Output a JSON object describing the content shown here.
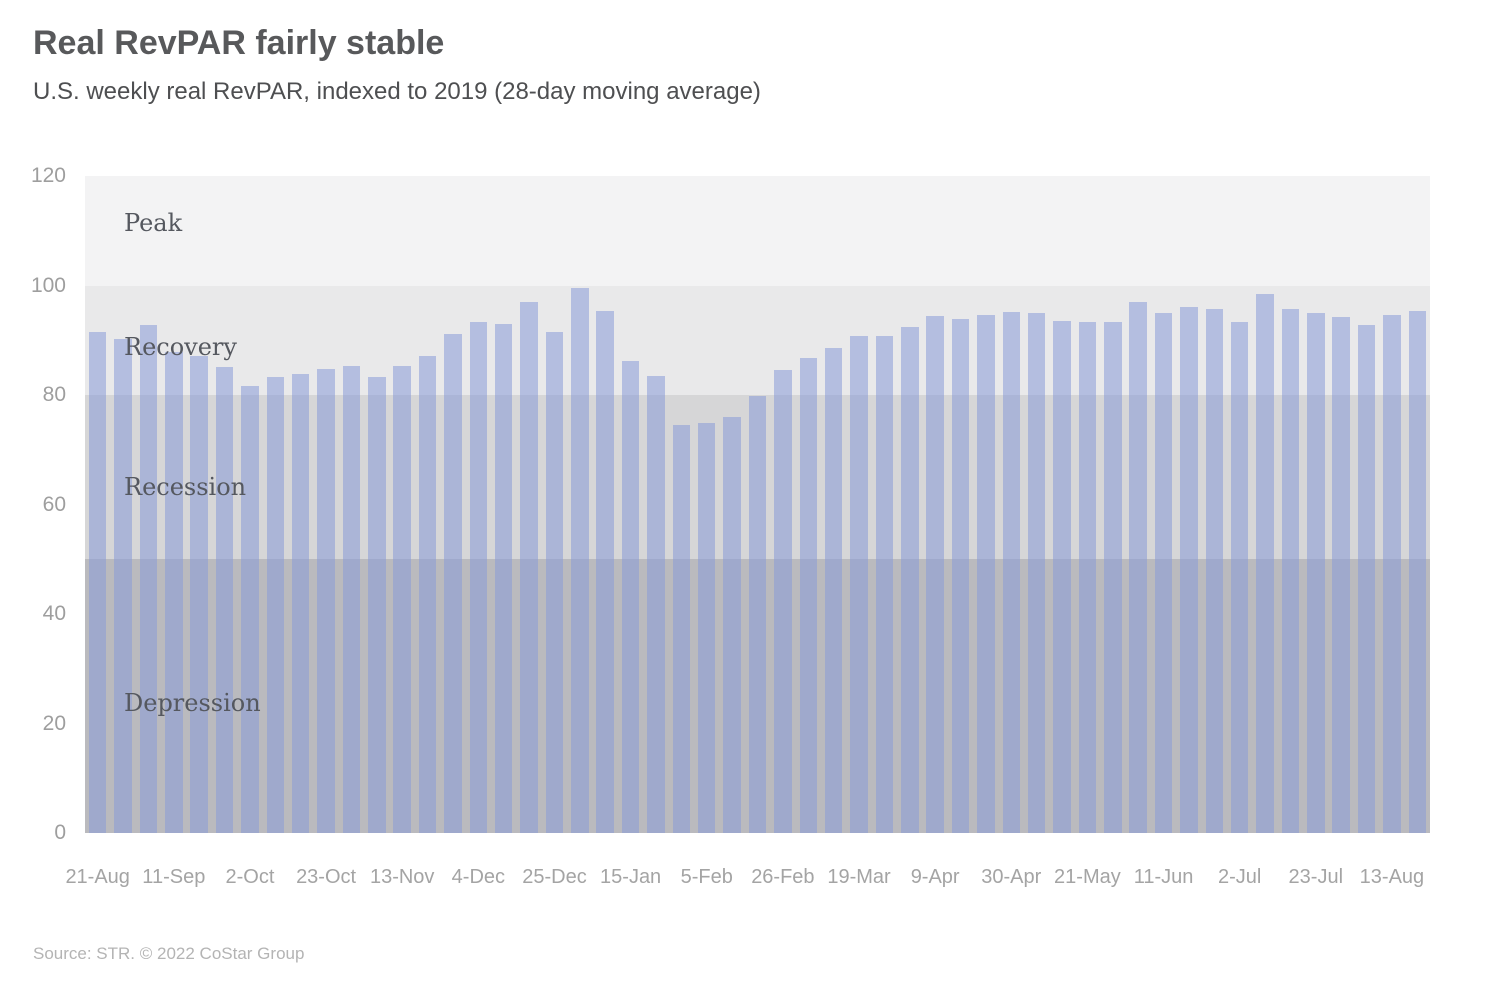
{
  "header": {
    "title": "Real RevPAR fairly stable",
    "subtitle": "U.S. weekly real RevPAR, indexed to 2019 (28-day moving average)"
  },
  "footer": {
    "source": "Source: STR. © 2022 CoStar Group"
  },
  "chart_data": {
    "type": "bar",
    "title": "Real RevPAR fairly stable",
    "subtitle": "U.S. weekly real RevPAR, indexed to 2019 (28-day moving average)",
    "xlabel": "",
    "ylabel": "",
    "ylim": [
      0,
      120
    ],
    "yticks": [
      0,
      20,
      40,
      60,
      80,
      100,
      120
    ],
    "grid": false,
    "bar_color": "rgba(137,155,215,0.55)",
    "axis_text_color": "#a4a4a4",
    "zone_label_color": "#55585f",
    "zones": [
      {
        "label": "Peak",
        "from": 100,
        "to": 120,
        "color": "#f3f3f4",
        "label_at": 111.5
      },
      {
        "label": "Recovery",
        "from": 80,
        "to": 100,
        "color": "#e9e9ea",
        "label_at": 88.8
      },
      {
        "label": "Recession",
        "from": 50,
        "to": 80,
        "color": "#d6d6d7",
        "label_at": 63.2
      },
      {
        "label": "Depression",
        "from": 0,
        "to": 50,
        "color": "#bababe",
        "label_at": 23.7
      }
    ],
    "x_labels": [
      "21-Aug",
      "11-Sep",
      "2-Oct",
      "23-Oct",
      "13-Nov",
      "4-Dec",
      "25-Dec",
      "15-Jan",
      "5-Feb",
      "26-Feb",
      "19-Mar",
      "9-Apr",
      "30-Apr",
      "21-May",
      "11-Jun",
      "2-Jul",
      "23-Jul",
      "13-Aug"
    ],
    "label_every": 3,
    "values": [
      91.5,
      90.2,
      92.8,
      87.9,
      87.1,
      85.2,
      81.6,
      83.3,
      83.9,
      84.7,
      85.3,
      83.2,
      85.3,
      87.1,
      91.1,
      93.4,
      92.9,
      96.9,
      91.5,
      99.6,
      95.4,
      86.3,
      83.4,
      74.6,
      74.8,
      76.0,
      79.8,
      84.5,
      86.7,
      88.5,
      90.8,
      90.7,
      92.4,
      94.4,
      93.9,
      94.7,
      95.2,
      94.9,
      93.6,
      93.3,
      93.3,
      96.9,
      95.0,
      96.1,
      95.8,
      93.3,
      98.4,
      95.7,
      95.0,
      94.2,
      92.8,
      94.7,
      95.3
    ]
  }
}
